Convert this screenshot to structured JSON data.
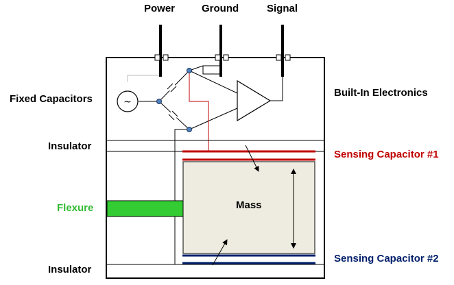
{
  "terminals": {
    "power": "Power",
    "ground": "Ground",
    "signal": "Signal"
  },
  "labels": {
    "fixed_capacitors": "Fixed Capacitors",
    "built_in_electronics": "Built-In Electronics",
    "insulator_top": "Insulator",
    "insulator_bottom": "Insulator",
    "flexure": "Flexure",
    "mass": "Mass",
    "sensing_capacitor_1": "Sensing Capacitor #1",
    "sensing_capacitor_2": "Sensing Capacitor #2",
    "source_symbol": "~"
  },
  "colors": {
    "sensing_capacitor_1": "#c00000",
    "sensing_capacitor_2": "#001f6b",
    "flexure": "#33cc33",
    "flexure_text": "#33bb33",
    "mass_fill": "#eeebe0",
    "node_fill": "#4f81bd",
    "wire_red": "#c00000",
    "outline": "#000000"
  }
}
